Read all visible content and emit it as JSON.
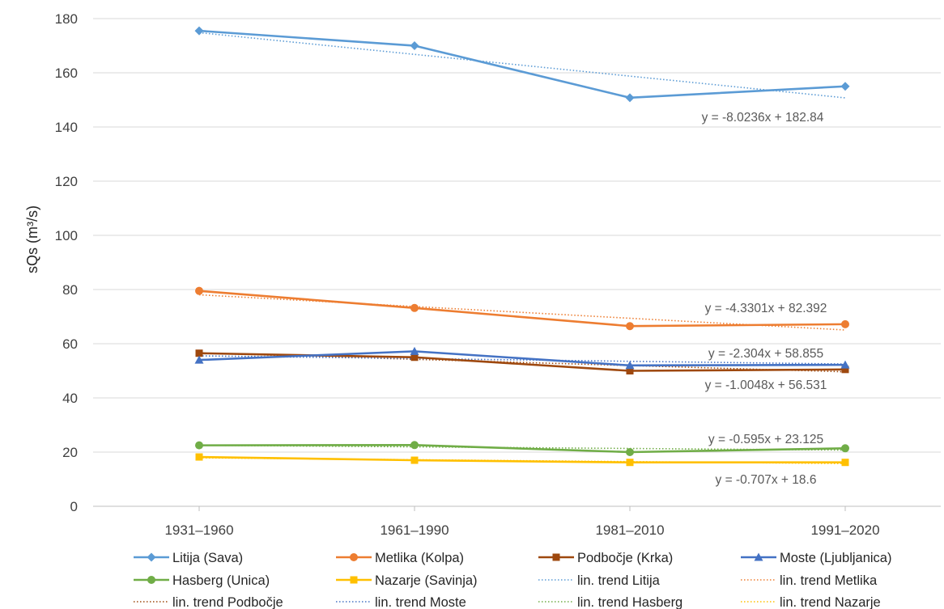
{
  "chart_data": {
    "type": "line",
    "categories": [
      "1931–1960",
      "1961–1990",
      "1981–2010",
      "1991–2020"
    ],
    "ylabel": "sQs (m³/s)",
    "ylim": [
      0,
      180
    ],
    "yticks": [
      "0",
      "20",
      "40",
      "60",
      "80",
      "100",
      "120",
      "140",
      "160",
      "180"
    ],
    "grid": true,
    "legend_position": "bottom",
    "series": [
      {
        "name": "Litija (Sava)",
        "values": [
          175.5,
          170.0,
          150.8,
          155.0
        ],
        "color": "#5b9bd5",
        "marker": "diamond",
        "trend_name": "lin. trend Litija",
        "trend": {
          "slope": -8.0236,
          "intercept": 182.84
        },
        "equation": "y = -8.0236x + 182.84"
      },
      {
        "name": "Metlika (Kolpa)",
        "values": [
          79.5,
          73.2,
          66.5,
          67.2
        ],
        "color": "#ed7d31",
        "marker": "circle",
        "trend_name": "lin. trend Metlika",
        "trend": {
          "slope": -4.3301,
          "intercept": 82.392
        },
        "equation": "y = -4.3301x + 82.392"
      },
      {
        "name": "Podbočje (Krka)",
        "values": [
          56.5,
          55.0,
          50.0,
          50.5
        ],
        "color": "#9e480e",
        "marker": "square",
        "trend_name": "lin. trend Podbočje",
        "trend": {
          "slope": -2.304,
          "intercept": 58.855
        },
        "equation": "y = -2.304x + 58.855"
      },
      {
        "name": "Moste (Ljubljanica)",
        "values": [
          54.0,
          57.2,
          52.0,
          52.2
        ],
        "color": "#4472c4",
        "marker": "triangle",
        "trend_name": "lin. trend Moste",
        "trend": {
          "slope": -1.0048,
          "intercept": 56.531
        },
        "equation": "y = -1.0048x + 56.531"
      },
      {
        "name": "Hasberg (Unica)",
        "values": [
          22.5,
          22.6,
          20.0,
          21.4
        ],
        "color": "#70ad47",
        "marker": "circle",
        "trend_name": "lin. trend Hasberg",
        "trend": {
          "slope": -0.595,
          "intercept": 23.125
        },
        "equation": "y = -0.595x + 23.125"
      },
      {
        "name": "Nazarje (Savinja)",
        "values": [
          18.2,
          17.0,
          16.2,
          16.2
        ],
        "color": "#ffc000",
        "marker": "square",
        "trend_name": "lin. trend Nazarje",
        "trend": {
          "slope": -0.707,
          "intercept": 18.6
        },
        "equation": "y = -0.707x + 18.6"
      }
    ]
  }
}
